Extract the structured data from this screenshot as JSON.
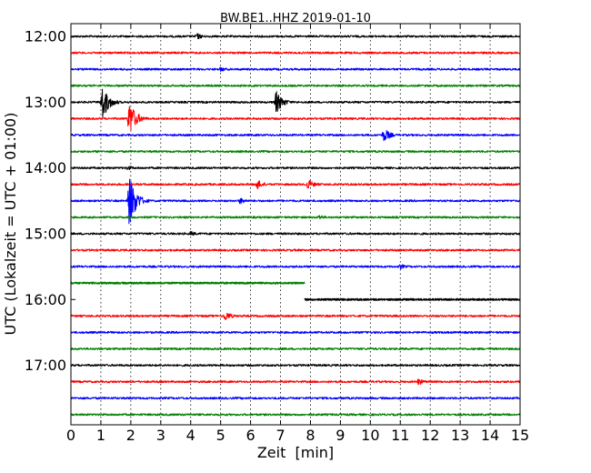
{
  "chart_data": {
    "type": "line",
    "title": "BW.BE1..HHZ 2019-01-10",
    "xlabel": "Zeit  [min]",
    "ylabel": "UTC (Lokalzeit = UTC + 01:00)",
    "xlim": [
      0,
      15
    ],
    "x_ticks": [
      0,
      1,
      2,
      3,
      4,
      5,
      6,
      7,
      8,
      9,
      10,
      11,
      12,
      13,
      14,
      15
    ],
    "x_grid": "dotted",
    "y_tick_labels": [
      "12:00",
      "13:00",
      "14:00",
      "15:00",
      "16:00",
      "17:00"
    ],
    "trace_colors": [
      "#000000",
      "#ff0000",
      "#0000ff",
      "#008000"
    ],
    "traces": [
      {
        "start": "12:00",
        "color": "#000000",
        "events": [
          {
            "t": 4.2,
            "amp": 4
          }
        ]
      },
      {
        "start": "12:15",
        "color": "#ff0000",
        "events": []
      },
      {
        "start": "12:30",
        "color": "#0000ff",
        "events": [
          {
            "t": 5.0,
            "amp": 3
          }
        ]
      },
      {
        "start": "12:45",
        "color": "#008000",
        "events": []
      },
      {
        "start": "13:00",
        "color": "#000000",
        "events": [
          {
            "t": 1.05,
            "amp": 20
          },
          {
            "t": 6.85,
            "amp": 13
          }
        ]
      },
      {
        "start": "13:15",
        "color": "#ff0000",
        "events": [
          {
            "t": 1.95,
            "amp": 20
          }
        ]
      },
      {
        "start": "13:30",
        "color": "#0000ff",
        "events": [
          {
            "t": 10.45,
            "amp": 8
          }
        ]
      },
      {
        "start": "13:45",
        "color": "#008000",
        "events": []
      },
      {
        "start": "14:00",
        "color": "#000000",
        "events": [
          {
            "t": 1.9,
            "amp": 3
          }
        ]
      },
      {
        "start": "14:15",
        "color": "#ff0000",
        "events": [
          {
            "t": 6.2,
            "amp": 6
          },
          {
            "t": 7.9,
            "amp": 6
          }
        ]
      },
      {
        "start": "14:30",
        "color": "#0000ff",
        "events": [
          {
            "t": 1.95,
            "amp": 30
          },
          {
            "t": 5.65,
            "amp": 4
          }
        ]
      },
      {
        "start": "14:45",
        "color": "#008000",
        "events": [
          {
            "t": 8.3,
            "amp": 3
          }
        ]
      },
      {
        "start": "15:00",
        "color": "#000000",
        "events": [
          {
            "t": 4.0,
            "amp": 3
          }
        ]
      },
      {
        "start": "15:15",
        "color": "#ff0000",
        "events": []
      },
      {
        "start": "15:30",
        "color": "#0000ff",
        "events": [
          {
            "t": 11.0,
            "amp": 3
          }
        ]
      },
      {
        "start": "15:45",
        "color": "#008000",
        "events": [],
        "data_end_min": 7.8
      },
      {
        "start": "16:00",
        "color": "#000000",
        "events": [],
        "data_start_min": 7.8
      },
      {
        "start": "16:15",
        "color": "#ff0000",
        "events": [
          {
            "t": 5.15,
            "amp": 6
          }
        ]
      },
      {
        "start": "16:30",
        "color": "#0000ff",
        "events": []
      },
      {
        "start": "16:45",
        "color": "#008000",
        "events": []
      },
      {
        "start": "17:00",
        "color": "#000000",
        "events": []
      },
      {
        "start": "17:15",
        "color": "#ff0000",
        "events": [
          {
            "t": 11.6,
            "amp": 4
          }
        ]
      },
      {
        "start": "17:30",
        "color": "#0000ff",
        "events": []
      },
      {
        "start": "17:45",
        "color": "#008000",
        "events": []
      }
    ]
  }
}
